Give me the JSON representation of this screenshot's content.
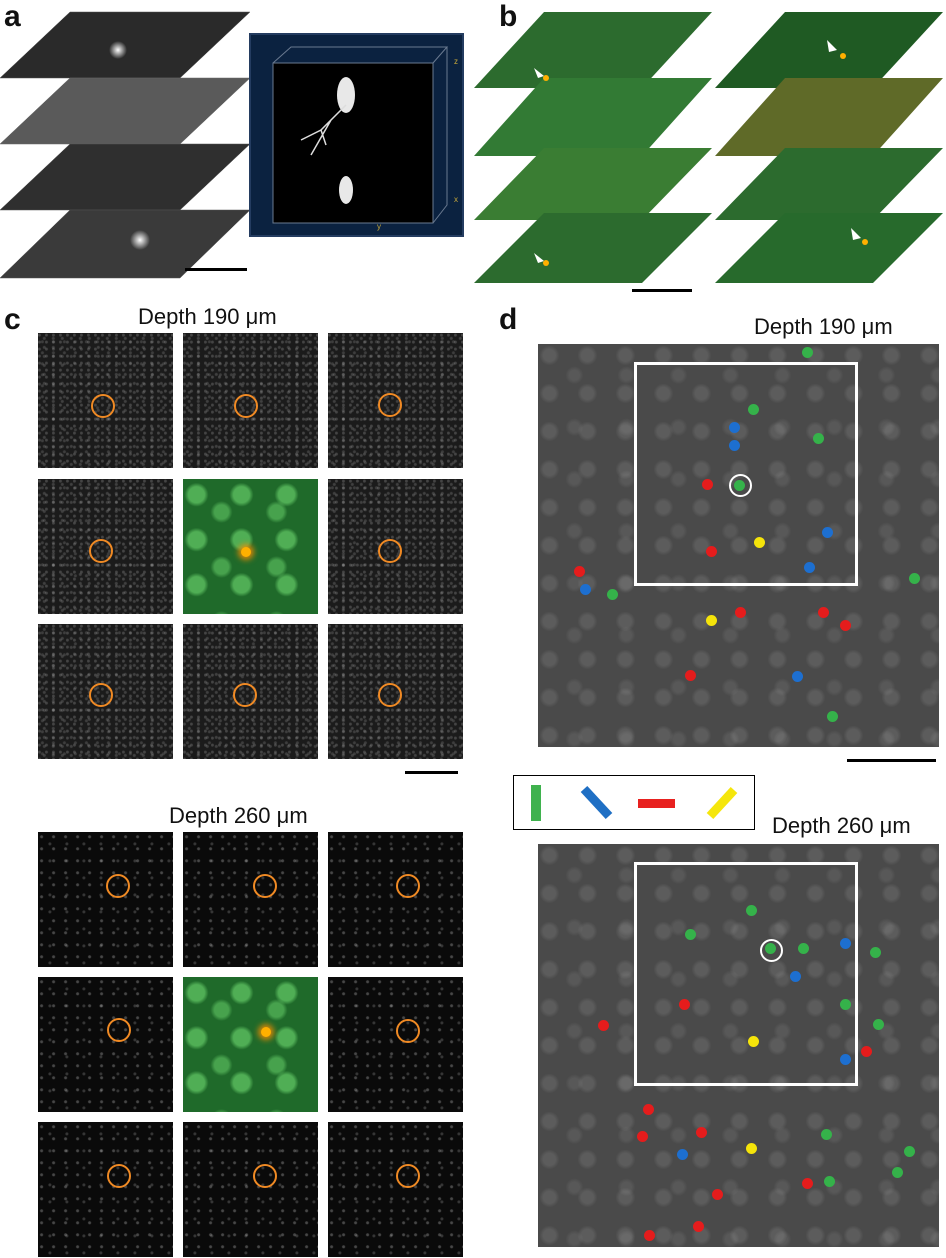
{
  "panels": {
    "a": {
      "label": "a"
    },
    "b": {
      "label": "b"
    },
    "c": {
      "label": "c",
      "depth_top": "Depth 190 μm",
      "depth_bottom": "Depth 260 μm"
    },
    "d": {
      "label": "d",
      "depth_top": "Depth 190 μm",
      "depth_bottom": "Depth 260 μm"
    }
  },
  "cube_axes": {
    "z": "z",
    "x": "x",
    "y": "y"
  },
  "legend": {
    "orientations": [
      {
        "angle": "0°",
        "color": "#3fb24e"
      },
      {
        "angle": "45°",
        "color": "#1f6fc4"
      },
      {
        "angle": "90°",
        "color": "#e8211f"
      },
      {
        "angle": "135°",
        "color": "#f5e60c"
      }
    ]
  },
  "colors": {
    "green": "#35b24a",
    "blue": "#1d6fd0",
    "red": "#e51c1c",
    "yellow": "#f5e40a",
    "ring_orange": "#f08a24"
  }
}
